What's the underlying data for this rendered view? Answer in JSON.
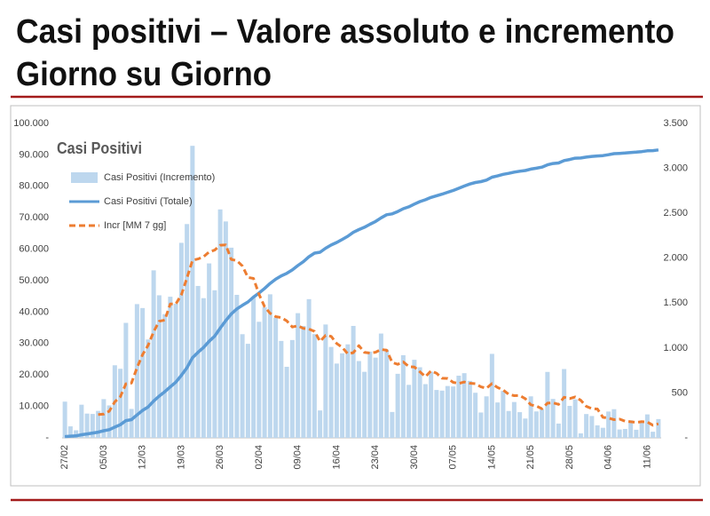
{
  "header": {
    "title_lines": [
      "Casi positivi – Valore assoluto e incremento",
      "Giorno su Giorno"
    ]
  },
  "chart_data": {
    "type": "combo",
    "title": "Casi Positivi",
    "categories": [
      "27/02",
      null,
      null,
      null,
      null,
      null,
      null,
      "05/03",
      null,
      null,
      null,
      null,
      null,
      null,
      "12/03",
      null,
      null,
      null,
      null,
      null,
      null,
      "19/03",
      null,
      null,
      null,
      null,
      null,
      null,
      "26/03",
      null,
      null,
      null,
      null,
      null,
      null,
      "02/04",
      null,
      null,
      null,
      null,
      null,
      null,
      "09/04",
      null,
      null,
      null,
      null,
      null,
      null,
      "16/04",
      null,
      null,
      null,
      null,
      null,
      null,
      "23/04",
      null,
      null,
      null,
      null,
      null,
      null,
      "30/04",
      null,
      null,
      null,
      null,
      null,
      null,
      "07/05",
      null,
      null,
      null,
      null,
      null,
      null,
      "14/05",
      null,
      null,
      null,
      null,
      null,
      null,
      "21/05",
      null,
      null,
      null,
      null,
      null,
      null,
      "28/05",
      null,
      null,
      null,
      null,
      null,
      null,
      "04/06",
      null,
      null,
      null,
      null,
      null,
      null,
      "11/06",
      null,
      null
    ],
    "series": [
      {
        "name": "Casi Positivi (Incremento)",
        "kind": "bar",
        "axis": "y2",
        "color": "#bdd7ee",
        "values": [
          403,
          128,
          84,
          369,
          270,
          266,
          300,
          431,
          361,
          808,
          769,
          1280,
          322,
          1489,
          1445,
          1095,
          1865,
          1587,
          1377,
          1571,
          1493,
          2171,
          2380,
          3251,
          1691,
          1555,
          1942,
          1643,
          2543,
          2409,
          2117,
          1592,
          1154,
          1047,
          1565,
          1292,
          1455,
          1598,
          1337,
          1079,
          791,
          1089,
          1388,
          1246,
          1544,
          1155,
          305,
          1262,
          1012,
          827,
          941,
          1041,
          1246,
          855,
          735,
          960,
          893,
          1161,
          983,
          288,
          713,
          920,
          590,
          869,
          786,
          598,
          737,
          533,
          526,
          577,
          572,
          692,
          720,
          634,
          502,
          282,
          462,
          935,
          394,
          522,
          299,
          399,
          286,
          215,
          462,
          294,
          316,
          734,
          433,
          159,
          766,
          356,
          429,
          50,
          265,
          243,
          139,
          112,
          293,
          319,
          93,
          99,
          195,
          90,
          173,
          261,
          68,
          209
        ]
      },
      {
        "name": "Casi Positivi (Totale)",
        "kind": "line",
        "axis": "y",
        "color": "#5b9bd5",
        "values": [
          403,
          531,
          615,
          984,
          1254,
          1520,
          1820,
          2251,
          2612,
          3420,
          4189,
          5469,
          5791,
          7280,
          8725,
          9820,
          11685,
          13272,
          14649,
          16220,
          17713,
          19884,
          22264,
          25515,
          27206,
          28761,
          30703,
          32346,
          34889,
          37298,
          39415,
          41007,
          42161,
          43208,
          44773,
          46065,
          47520,
          49118,
          50455,
          51534,
          52325,
          53414,
          54802,
          56048,
          57592,
          58747,
          59052,
          60314,
          61326,
          62153,
          63094,
          64135,
          65381,
          66236,
          66971,
          67931,
          68824,
          69985,
          70968,
          71256,
          71969,
          72889,
          73479,
          74348,
          75134,
          75732,
          76469,
          77002,
          77528,
          78105,
          78677,
          79369,
          80089,
          80723,
          81225,
          81507,
          81969,
          82904,
          83298,
          83820,
          84119,
          84518,
          84804,
          85019,
          85481,
          85775,
          86091,
          86825,
          87258,
          87417,
          88183,
          88539,
          88968,
          89018,
          89283,
          89526,
          89665,
          89777,
          90070,
          90389,
          90482,
          90581,
          90776,
          90866,
          91039,
          91300,
          91368,
          91577
        ]
      },
      {
        "name": "Incr [MM 7 gg]",
        "kind": "dashed",
        "axis": "y2",
        "color": "#ed7d31",
        "values": [
          null,
          null,
          null,
          null,
          null,
          null,
          260,
          264,
          297,
          401,
          458,
          602,
          610,
          780,
          925,
          1030,
          1181,
          1298,
          1311,
          1490,
          1490,
          1594,
          1778,
          1976,
          1991,
          2016,
          2069,
          2090,
          2144,
          2148,
          1986,
          1972,
          1914,
          1786,
          1775,
          1597,
          1460,
          1386,
          1350,
          1339,
          1302,
          1234,
          1248,
          1218,
          1211,
          1185,
          1074,
          1141,
          1130,
          1050,
          1007,
          935,
          948,
          1026,
          951,
          944,
          953,
          984,
          976,
          839,
          819,
          845,
          793,
          789,
          736,
          681,
          745,
          719,
          663,
          661,
          618,
          605,
          622,
          608,
          603,
          568,
          552,
          604,
          561,
          533,
          485,
          470,
          471,
          436,
          368,
          354,
          324,
          387,
          391,
          373,
          452,
          437,
          456,
          418,
          351,
          324,
          321,
          228,
          219,
          203,
          209,
          185,
          179,
          172,
          180,
          176,
          140,
          156
        ]
      }
    ],
    "ylim": [
      0,
      100000
    ],
    "yticks": [
      {
        "value": 0,
        "label": "-"
      },
      {
        "value": 10000,
        "label": "10.000"
      },
      {
        "value": 20000,
        "label": "20.000"
      },
      {
        "value": 30000,
        "label": "30.000"
      },
      {
        "value": 40000,
        "label": "40.000"
      },
      {
        "value": 50000,
        "label": "50.000"
      },
      {
        "value": 60000,
        "label": "60.000"
      },
      {
        "value": 70000,
        "label": "70.000"
      },
      {
        "value": 80000,
        "label": "80.000"
      },
      {
        "value": 90000,
        "label": "90.000"
      },
      {
        "value": 100000,
        "label": "100.000"
      }
    ],
    "y2lim": [
      0,
      3500
    ],
    "y2ticks": [
      {
        "value": 0,
        "label": "-"
      },
      500,
      {
        "value": 1000,
        "label": "1.000"
      },
      {
        "value": 1500,
        "label": "1.500"
      },
      {
        "value": 2000,
        "label": "2.000"
      },
      {
        "value": 2500,
        "label": "2.500"
      },
      {
        "value": 3000,
        "label": "3.000"
      },
      {
        "value": 3500,
        "label": "3.500"
      }
    ],
    "grid": false
  }
}
